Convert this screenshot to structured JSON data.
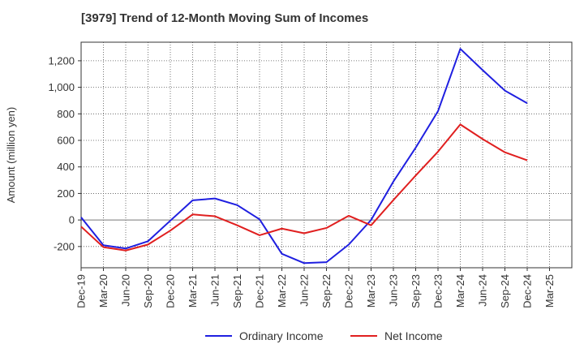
{
  "chart_data": {
    "type": "line",
    "title": "[3979]  Trend of 12-Month Moving Sum of Incomes",
    "xlabel": "",
    "ylabel": "Amount (million yen)",
    "ylim": [
      -360,
      1340
    ],
    "yticks": [
      -200,
      0,
      200,
      400,
      600,
      800,
      1000,
      1200
    ],
    "ytick_labels": [
      "-200",
      "0",
      "200",
      "400",
      "600",
      "800",
      "1,000",
      "1,200"
    ],
    "x_tick_labels": [
      "Dec-19",
      "Mar-20",
      "Jun-20",
      "Sep-20",
      "Dec-20",
      "Mar-21",
      "Jun-21",
      "Sep-21",
      "Dec-21",
      "Mar-22",
      "Jun-22",
      "Sep-22",
      "Dec-22",
      "Mar-23",
      "Jun-23",
      "Sep-23",
      "Dec-23",
      "Mar-24",
      "Jun-24",
      "Sep-24",
      "Dec-24",
      "Mar-25"
    ],
    "categories": [
      "Dec-19",
      "Mar-20",
      "Jun-20",
      "Sep-20",
      "Dec-20",
      "Mar-21",
      "Jun-21",
      "Sep-21",
      "Dec-21",
      "Mar-22",
      "Jun-22",
      "Sep-22",
      "Dec-22",
      "Mar-23",
      "Jun-23",
      "Sep-23",
      "Dec-23",
      "Mar-24",
      "Jun-24",
      "Sep-24",
      "Dec-24"
    ],
    "series": [
      {
        "name": "Ordinary Income",
        "color": "#1f1fe0",
        "values": [
          20,
          -190,
          -215,
          -160,
          -5,
          148,
          162,
          112,
          5,
          -255,
          -325,
          -318,
          -185,
          0,
          290,
          545,
          820,
          1290,
          1130,
          975,
          880
        ]
      },
      {
        "name": "Net Income",
        "color": "#e01f1f",
        "values": [
          -50,
          -205,
          -230,
          -185,
          -80,
          42,
          28,
          -40,
          -115,
          -65,
          -100,
          -60,
          32,
          -40,
          150,
          335,
          515,
          720,
          610,
          510,
          450
        ]
      }
    ],
    "grid": true,
    "zero_line": true,
    "legend_position": "bottom"
  }
}
